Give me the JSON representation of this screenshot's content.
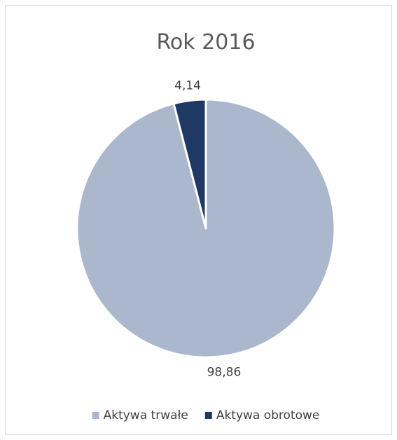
{
  "chart_data": {
    "type": "pie",
    "title": "Rok 2016",
    "start_angle_deg": 0,
    "direction": "clockwise",
    "legend_position": "bottom",
    "slices": [
      {
        "label": "Aktywa trwałe",
        "value": 98.86,
        "display": "98,86",
        "color": "#abb7cc"
      },
      {
        "label": "Aktywa obrotowe",
        "value": 4.14,
        "display": "4,14",
        "color": "#1f3864"
      }
    ]
  }
}
